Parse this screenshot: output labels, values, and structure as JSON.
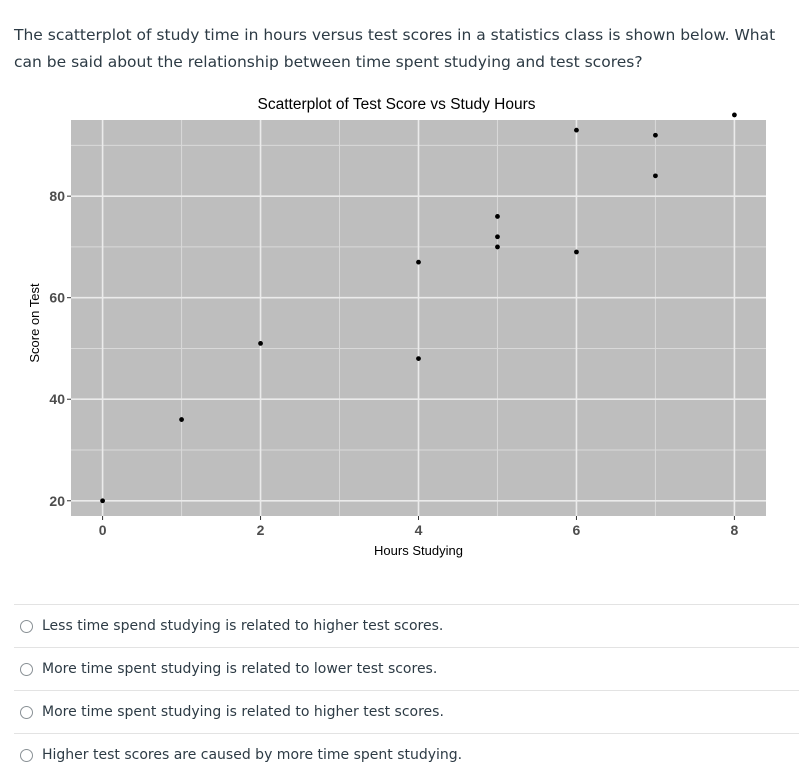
{
  "question": {
    "text": "The scatterplot of study time in hours versus test scores in a statistics class is shown below. What can be said about the relationship between time spent studying and test scores?"
  },
  "chart_data": {
    "type": "scatter",
    "title": "Scatterplot of Test Score vs Study Hours",
    "xlabel": "Hours Studying",
    "ylabel": "Score on Test",
    "xlim": [
      -0.4,
      8.4
    ],
    "ylim": [
      17,
      95
    ],
    "xticks": [
      0,
      2,
      4,
      6,
      8
    ],
    "yticks": [
      20,
      40,
      60,
      80
    ],
    "grid": true,
    "points": [
      {
        "x": 0,
        "y": 20
      },
      {
        "x": 1,
        "y": 36
      },
      {
        "x": 2,
        "y": 51
      },
      {
        "x": 4,
        "y": 48
      },
      {
        "x": 4,
        "y": 67
      },
      {
        "x": 5,
        "y": 70
      },
      {
        "x": 5,
        "y": 72
      },
      {
        "x": 5,
        "y": 76
      },
      {
        "x": 6,
        "y": 69
      },
      {
        "x": 6,
        "y": 93
      },
      {
        "x": 7,
        "y": 84
      },
      {
        "x": 7,
        "y": 92
      },
      {
        "x": 8,
        "y": 96
      }
    ],
    "colors": {
      "panel": "#bebebe",
      "grid_major": "#ebebeb",
      "grid_minor": "#d9d9d9",
      "point": "#000000",
      "tick_label": "#4d4d4d"
    }
  },
  "answers": [
    {
      "label": "Less time spend studying is related to higher test scores."
    },
    {
      "label": "More time spent studying is related to lower test scores."
    },
    {
      "label": "More time spent studying is related to higher test scores."
    },
    {
      "label": "Higher test scores are caused by more time spent studying."
    }
  ]
}
